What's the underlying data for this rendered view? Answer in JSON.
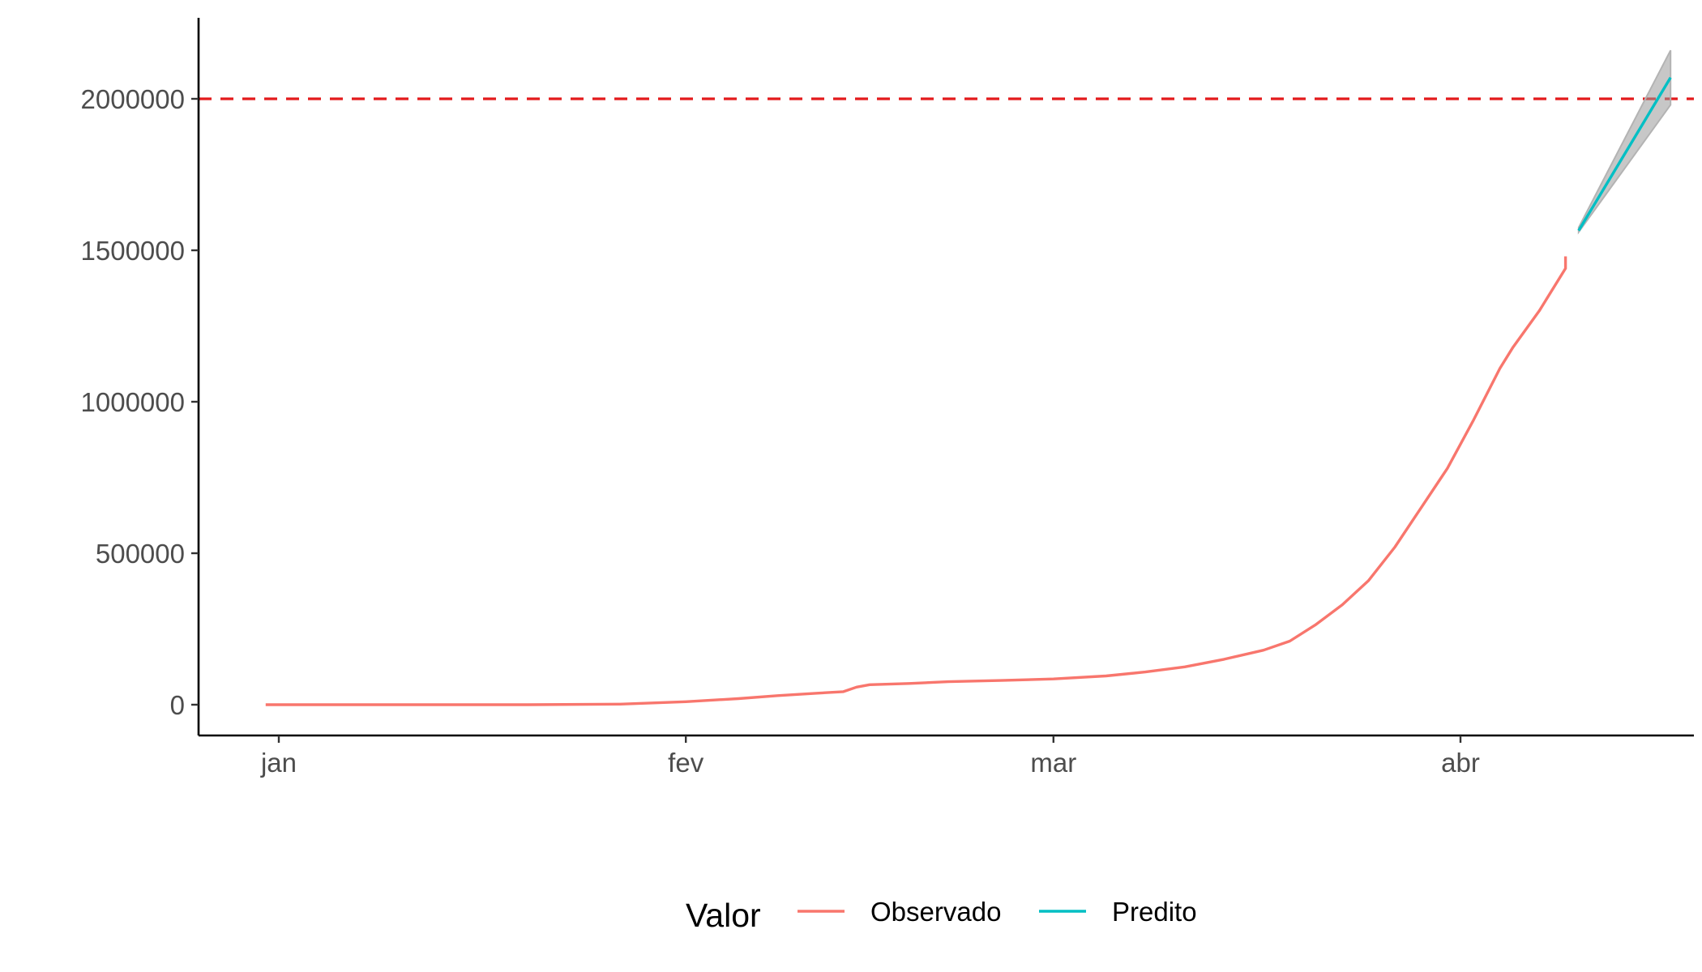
{
  "chart_data": {
    "type": "line",
    "title": "",
    "xlabel": "",
    "ylabel": "",
    "x_axis": {
      "type": "date",
      "range": [
        "2021-01-01",
        "2021-04-17"
      ],
      "ticks": [
        {
          "date": "2021-01-01",
          "label": "jan"
        },
        {
          "date": "2021-02-01",
          "label": "fev"
        },
        {
          "date": "2021-03-01",
          "label": "mar"
        },
        {
          "date": "2021-04-01",
          "label": "abr"
        }
      ]
    },
    "y_axis": {
      "range": [
        -105000,
        2260000
      ],
      "ticks": [
        {
          "value": 0,
          "label": "0"
        },
        {
          "value": 500000,
          "label": "500000"
        },
        {
          "value": 1000000,
          "label": "1000000"
        },
        {
          "value": 1500000,
          "label": "1500000"
        },
        {
          "value": 2000000,
          "label": "2000000"
        }
      ]
    },
    "grid": false,
    "reference_line": {
      "value": 2000000,
      "color": "#e31a1c",
      "style": "dashed"
    },
    "legend": {
      "position": "bottom",
      "title": "Valor",
      "entries": [
        {
          "label": "Observado",
          "color": "#F8766D"
        },
        {
          "label": "Predito",
          "color": "#00BFC4"
        }
      ]
    },
    "series": [
      {
        "name": "Observado",
        "color": "#F8766D",
        "points": [
          {
            "date": "2020-12-31",
            "value": 0
          },
          {
            "date": "2021-01-10",
            "value": 0
          },
          {
            "date": "2021-01-20",
            "value": 0
          },
          {
            "date": "2021-01-27",
            "value": 2000
          },
          {
            "date": "2021-02-01",
            "value": 10000
          },
          {
            "date": "2021-02-05",
            "value": 20000
          },
          {
            "date": "2021-02-08",
            "value": 30000
          },
          {
            "date": "2021-02-11",
            "value": 38000
          },
          {
            "date": "2021-02-13",
            "value": 43000
          },
          {
            "date": "2021-02-14",
            "value": 58000
          },
          {
            "date": "2021-02-15",
            "value": 66000
          },
          {
            "date": "2021-02-18",
            "value": 70000
          },
          {
            "date": "2021-02-21",
            "value": 76000
          },
          {
            "date": "2021-02-25",
            "value": 80000
          },
          {
            "date": "2021-03-01",
            "value": 85000
          },
          {
            "date": "2021-03-05",
            "value": 95000
          },
          {
            "date": "2021-03-08",
            "value": 108000
          },
          {
            "date": "2021-03-11",
            "value": 125000
          },
          {
            "date": "2021-03-14",
            "value": 150000
          },
          {
            "date": "2021-03-17",
            "value": 180000
          },
          {
            "date": "2021-03-19",
            "value": 210000
          },
          {
            "date": "2021-03-21",
            "value": 265000
          },
          {
            "date": "2021-03-23",
            "value": 330000
          },
          {
            "date": "2021-03-25",
            "value": 410000
          },
          {
            "date": "2021-03-27",
            "value": 520000
          },
          {
            "date": "2021-03-29",
            "value": 650000
          },
          {
            "date": "2021-03-31",
            "value": 780000
          },
          {
            "date": "2021-04-02",
            "value": 940000
          },
          {
            "date": "2021-04-04",
            "value": 1110000
          },
          {
            "date": "2021-04-05",
            "value": 1180000
          },
          {
            "date": "2021-04-07",
            "value": 1300000
          },
          {
            "date": "2021-04-09",
            "value": 1440000
          },
          {
            "date": "2021-04-09",
            "value": 1480000
          }
        ]
      },
      {
        "name": "Predito",
        "color": "#00BFC4",
        "points": [
          {
            "date": "2021-04-10",
            "value": 1565000
          },
          {
            "date": "2021-04-17",
            "value": 2070000
          }
        ],
        "interval": {
          "lower": [
            1560000,
            1980000
          ],
          "upper": [
            1575000,
            2160000
          ]
        }
      }
    ]
  }
}
